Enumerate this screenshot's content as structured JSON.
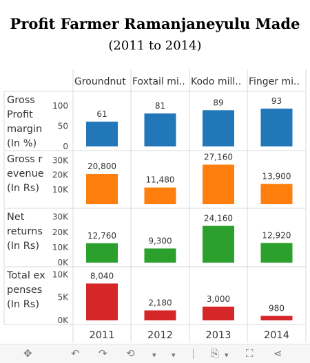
{
  "header": {
    "title": "Profit  Farmer  Ramanjaneyulu  Made",
    "subtitle": "(2011  to  2014)"
  },
  "chart_data": {
    "type": "bar",
    "title": "Profit  Farmer  Ramanjaneyulu  Made",
    "subtitle": "(2011  to  2014)",
    "column_headers": [
      "Groundnut",
      "Foxtail mi..",
      "Kodo mill..",
      "Finger mi.."
    ],
    "categories": [
      "2011",
      "2012",
      "2013",
      "2014"
    ],
    "grid": true,
    "legend": "none",
    "series": [
      {
        "row_label": [
          "Gross",
          "Profit",
          "margin",
          "(In %)"
        ],
        "color": "#2277b9",
        "values": [
          61,
          81,
          89,
          93
        ],
        "value_labels": [
          "61",
          "81",
          "89",
          "93"
        ],
        "ylim": [
          0,
          125
        ],
        "ticks": [
          {
            "v": 100,
            "t": "100"
          },
          {
            "v": 50,
            "t": "50"
          },
          {
            "v": 0,
            "t": "0"
          }
        ]
      },
      {
        "row_label": [
          "Gross r",
          "evenue",
          "(In Rs)"
        ],
        "color": "#ff7f0e",
        "values": [
          20800,
          11480,
          27160,
          13900
        ],
        "value_labels": [
          "20,800",
          "11,480",
          "27,160",
          "13,900"
        ],
        "ylim": [
          0,
          34000
        ],
        "ticks": [
          {
            "v": 30000,
            "t": "30K"
          },
          {
            "v": 20000,
            "t": "20K"
          },
          {
            "v": 10000,
            "t": "10K"
          }
        ]
      },
      {
        "row_label": [
          "Net",
          "returns",
          "(In Rs)"
        ],
        "color": "#2ca02c",
        "values": [
          12760,
          9300,
          24160,
          12920
        ],
        "value_labels": [
          "12,760",
          "9,300",
          "24,160",
          "12,920"
        ],
        "ylim": [
          0,
          33000
        ],
        "ticks": [
          {
            "v": 30000,
            "t": "30K"
          },
          {
            "v": 20000,
            "t": "20K"
          },
          {
            "v": 10000,
            "t": "10K"
          },
          {
            "v": 0,
            "t": "0K"
          }
        ]
      },
      {
        "row_label": [
          "Total ex",
          "penses",
          "(In Rs)"
        ],
        "color": "#d62728",
        "values": [
          8040,
          2180,
          3000,
          980
        ],
        "value_labels": [
          "8,040",
          "2,180",
          "3,000",
          "980"
        ],
        "ylim": [
          0,
          10800
        ],
        "ticks": [
          {
            "v": 10000,
            "t": "10K"
          },
          {
            "v": 5000,
            "t": "5K"
          },
          {
            "v": 0,
            "t": "0K"
          }
        ]
      }
    ]
  },
  "toolbar": {
    "move": "✥",
    "undo": "↶",
    "redo": "↷",
    "reset": "⟲",
    "reset_menu": "▾",
    "export": "⎘",
    "export_menu": "▾",
    "fullscreen": "⛶",
    "share": "⋖"
  }
}
